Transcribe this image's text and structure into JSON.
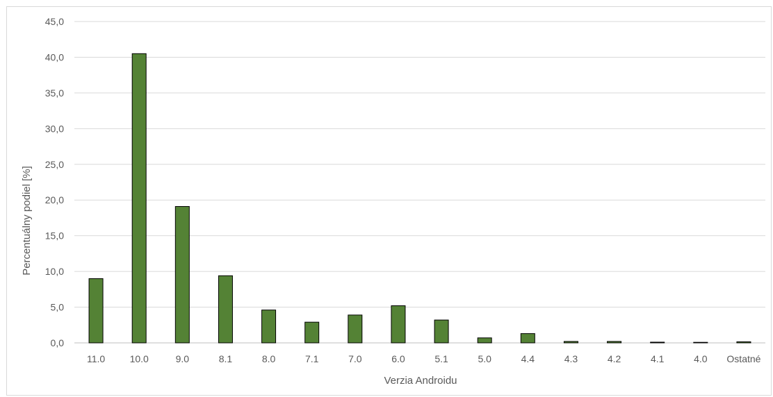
{
  "chart_data": {
    "type": "bar",
    "title": "",
    "xlabel": "Verzia Androidu",
    "ylabel": "Percentuálny podiel [%]",
    "categories": [
      "11.0",
      "10.0",
      "9.0",
      "8.1",
      "8.0",
      "7.1",
      "7.0",
      "6.0",
      "5.1",
      "5.0",
      "4.4",
      "4.3",
      "4.2",
      "4.1",
      "4.0",
      "Ostatné"
    ],
    "values": [
      9.0,
      40.5,
      19.1,
      9.4,
      4.6,
      2.9,
      3.9,
      5.2,
      3.2,
      0.7,
      1.3,
      0.2,
      0.2,
      0.1,
      0.05,
      0.15
    ],
    "ylim": [
      0,
      45
    ],
    "yticks": [
      0,
      5,
      10,
      15,
      20,
      25,
      30,
      35,
      40,
      45
    ],
    "ytick_labels": [
      "0,0",
      "5,0",
      "10,0",
      "15,0",
      "20,0",
      "25,0",
      "30,0",
      "35,0",
      "40,0",
      "45,0"
    ],
    "grid": true,
    "legend": "none",
    "colors": {
      "bar_fill": "#548235",
      "bar_stroke": "#000000",
      "grid": "#d9d9d9",
      "axis_line": "#bfbfbf",
      "text": "#595959"
    }
  }
}
